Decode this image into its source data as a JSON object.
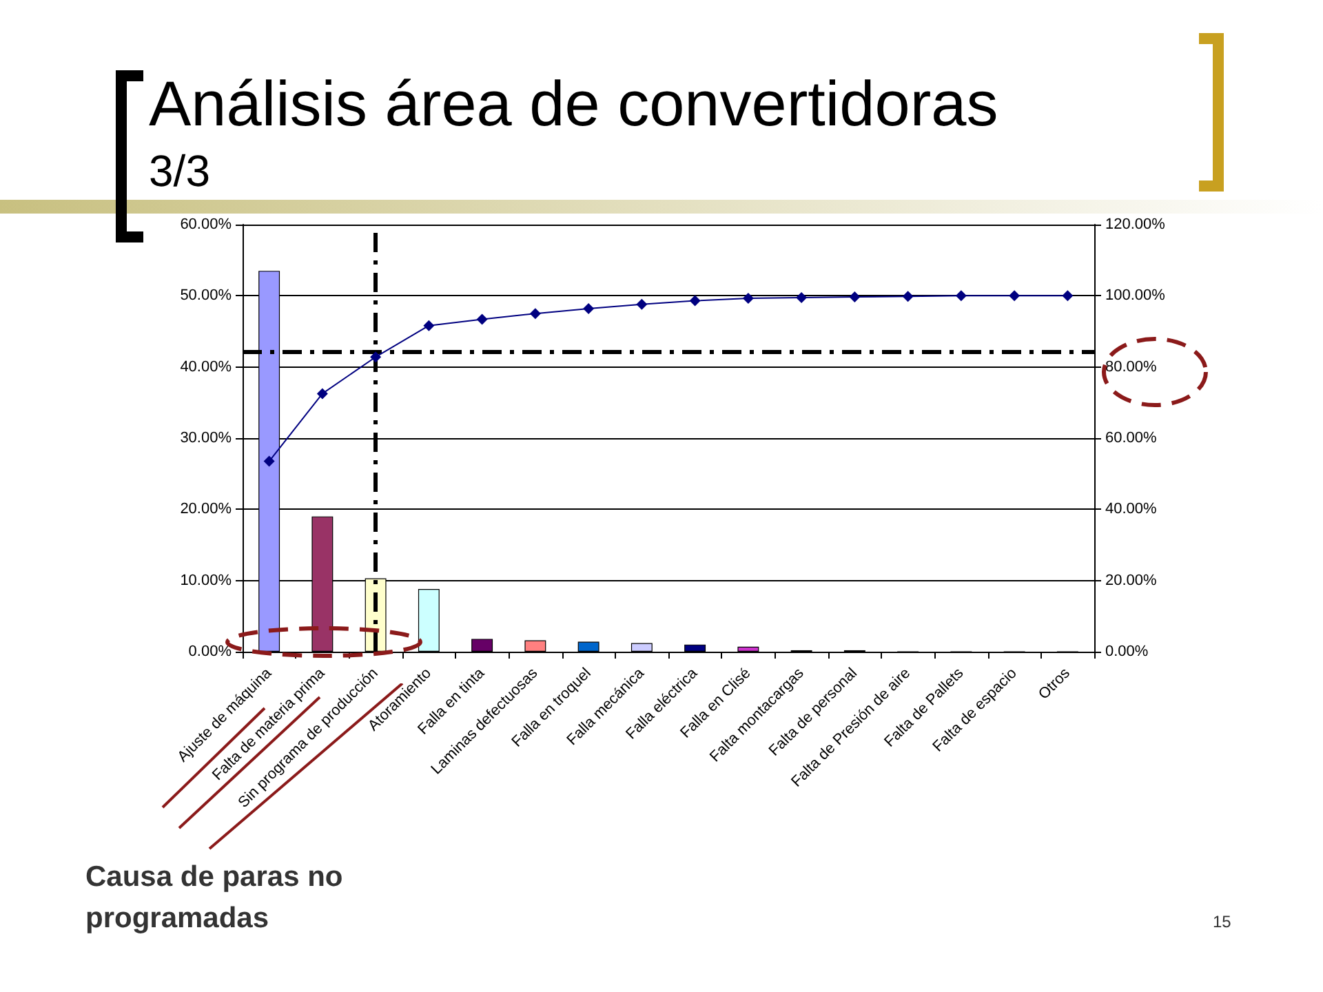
{
  "chart_data": {
    "type": "bar",
    "title": "Análisis área de convertidoras",
    "subtitle": "3/3",
    "xlabel": "Causa de paras no programadas",
    "annotations": [
      "15"
    ],
    "categories": [
      "Ajuste de máquina",
      "Falta de materia prima",
      "Sin programa de producción",
      "Atoramiento",
      "Falla en tinta",
      "Laminas defectuosas",
      "Falla en troquel",
      "Falla mecánica",
      "Falla eléctrica",
      "Falla en Clisé",
      "Falta montacargas",
      "Falta de personal",
      "Falta de Presión de aire",
      "Falta de Pallets",
      "Falta de espacio",
      "Otros"
    ],
    "series": [
      {
        "values": [
          53.5,
          19,
          10.3,
          8.8,
          1.8,
          1.6,
          1.4,
          1.2,
          1.0,
          0.7,
          0.2,
          0.2,
          0,
          0,
          0,
          0
        ],
        "colors": [
          "#9999ff",
          "#993366",
          "#ffffcc",
          "#ccffff",
          "#660066",
          "#ff8080",
          "#0066cc",
          "#ccccff",
          "#000080",
          "#cc33cc",
          "#000000",
          "#000000",
          "#000000",
          "#000000",
          "#000000",
          "#000000"
        ]
      },
      {
        "type": "line",
        "axis": "y2",
        "color": "#000080",
        "marker": "diamond",
        "values": [
          53.5,
          72.5,
          82.8,
          91.6,
          93.4,
          95.0,
          96.4,
          97.6,
          98.6,
          99.3,
          99.5,
          99.7,
          99.8,
          100,
          100,
          100
        ]
      }
    ],
    "ylim": [
      0,
      60
    ],
    "yticks": [
      {
        "value": 0,
        "label": "0.00%"
      },
      {
        "value": 10,
        "label": "10.00%"
      },
      {
        "value": 20,
        "label": "20.00%"
      },
      {
        "value": 30,
        "label": "30.00%"
      },
      {
        "value": 40,
        "label": "40.00%"
      },
      {
        "value": 50,
        "label": "50.00%"
      },
      {
        "value": 60,
        "label": "60.00%"
      }
    ],
    "y2lim": [
      0,
      120
    ],
    "y2ticks": [
      {
        "value": 0,
        "label": "0.00%"
      },
      {
        "value": 20,
        "label": "20.00%"
      },
      {
        "value": 40,
        "label": "40.00%"
      },
      {
        "value": 60,
        "label": "60.00%"
      },
      {
        "value": 80,
        "label": "80.00%"
      },
      {
        "value": 100,
        "label": "100.00%"
      },
      {
        "value": 120,
        "label": "120.00%"
      }
    ],
    "ref_lines": [
      {
        "axis": "y2",
        "value": 84.4,
        "color": "#000000",
        "line_style": "dashed"
      },
      {
        "axis": "x",
        "value": "Sin programa de producción",
        "color": "#000000",
        "line_style": "dashed"
      }
    ],
    "grid": "y"
  }
}
